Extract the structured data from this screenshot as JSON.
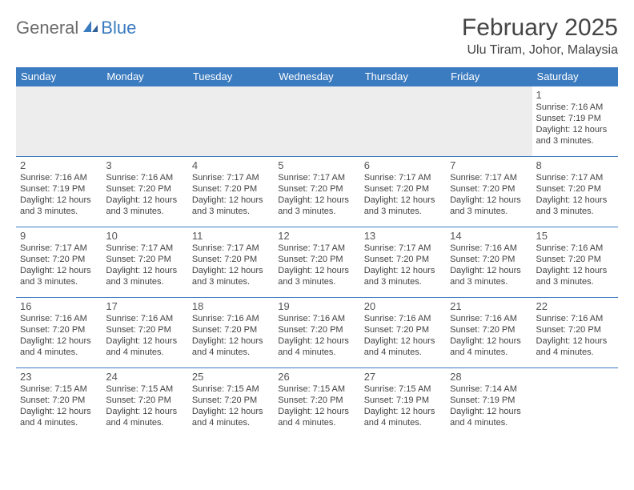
{
  "logo": {
    "text1": "General",
    "text2": "Blue"
  },
  "title": "February 2025",
  "location": "Ulu Tiram, Johor, Malaysia",
  "colors": {
    "header_bg": "#3b7bbf",
    "header_text": "#ffffff",
    "border": "#3b7bbf",
    "empty_bg": "#ededed",
    "body_text": "#424242",
    "logo_gray": "#6b6b6b",
    "logo_blue": "#3b7bbf"
  },
  "dayHeaders": [
    "Sunday",
    "Monday",
    "Tuesday",
    "Wednesday",
    "Thursday",
    "Friday",
    "Saturday"
  ],
  "weeks": [
    [
      null,
      null,
      null,
      null,
      null,
      null,
      {
        "d": 1,
        "sr": "7:16 AM",
        "ss": "7:19 PM",
        "dl": "12 hours and 3 minutes."
      }
    ],
    [
      {
        "d": 2,
        "sr": "7:16 AM",
        "ss": "7:19 PM",
        "dl": "12 hours and 3 minutes."
      },
      {
        "d": 3,
        "sr": "7:16 AM",
        "ss": "7:20 PM",
        "dl": "12 hours and 3 minutes."
      },
      {
        "d": 4,
        "sr": "7:17 AM",
        "ss": "7:20 PM",
        "dl": "12 hours and 3 minutes."
      },
      {
        "d": 5,
        "sr": "7:17 AM",
        "ss": "7:20 PM",
        "dl": "12 hours and 3 minutes."
      },
      {
        "d": 6,
        "sr": "7:17 AM",
        "ss": "7:20 PM",
        "dl": "12 hours and 3 minutes."
      },
      {
        "d": 7,
        "sr": "7:17 AM",
        "ss": "7:20 PM",
        "dl": "12 hours and 3 minutes."
      },
      {
        "d": 8,
        "sr": "7:17 AM",
        "ss": "7:20 PM",
        "dl": "12 hours and 3 minutes."
      }
    ],
    [
      {
        "d": 9,
        "sr": "7:17 AM",
        "ss": "7:20 PM",
        "dl": "12 hours and 3 minutes."
      },
      {
        "d": 10,
        "sr": "7:17 AM",
        "ss": "7:20 PM",
        "dl": "12 hours and 3 minutes."
      },
      {
        "d": 11,
        "sr": "7:17 AM",
        "ss": "7:20 PM",
        "dl": "12 hours and 3 minutes."
      },
      {
        "d": 12,
        "sr": "7:17 AM",
        "ss": "7:20 PM",
        "dl": "12 hours and 3 minutes."
      },
      {
        "d": 13,
        "sr": "7:17 AM",
        "ss": "7:20 PM",
        "dl": "12 hours and 3 minutes."
      },
      {
        "d": 14,
        "sr": "7:16 AM",
        "ss": "7:20 PM",
        "dl": "12 hours and 3 minutes."
      },
      {
        "d": 15,
        "sr": "7:16 AM",
        "ss": "7:20 PM",
        "dl": "12 hours and 3 minutes."
      }
    ],
    [
      {
        "d": 16,
        "sr": "7:16 AM",
        "ss": "7:20 PM",
        "dl": "12 hours and 4 minutes."
      },
      {
        "d": 17,
        "sr": "7:16 AM",
        "ss": "7:20 PM",
        "dl": "12 hours and 4 minutes."
      },
      {
        "d": 18,
        "sr": "7:16 AM",
        "ss": "7:20 PM",
        "dl": "12 hours and 4 minutes."
      },
      {
        "d": 19,
        "sr": "7:16 AM",
        "ss": "7:20 PM",
        "dl": "12 hours and 4 minutes."
      },
      {
        "d": 20,
        "sr": "7:16 AM",
        "ss": "7:20 PM",
        "dl": "12 hours and 4 minutes."
      },
      {
        "d": 21,
        "sr": "7:16 AM",
        "ss": "7:20 PM",
        "dl": "12 hours and 4 minutes."
      },
      {
        "d": 22,
        "sr": "7:16 AM",
        "ss": "7:20 PM",
        "dl": "12 hours and 4 minutes."
      }
    ],
    [
      {
        "d": 23,
        "sr": "7:15 AM",
        "ss": "7:20 PM",
        "dl": "12 hours and 4 minutes."
      },
      {
        "d": 24,
        "sr": "7:15 AM",
        "ss": "7:20 PM",
        "dl": "12 hours and 4 minutes."
      },
      {
        "d": 25,
        "sr": "7:15 AM",
        "ss": "7:20 PM",
        "dl": "12 hours and 4 minutes."
      },
      {
        "d": 26,
        "sr": "7:15 AM",
        "ss": "7:20 PM",
        "dl": "12 hours and 4 minutes."
      },
      {
        "d": 27,
        "sr": "7:15 AM",
        "ss": "7:19 PM",
        "dl": "12 hours and 4 minutes."
      },
      {
        "d": 28,
        "sr": "7:14 AM",
        "ss": "7:19 PM",
        "dl": "12 hours and 4 minutes."
      },
      null
    ]
  ],
  "labels": {
    "sunrise": "Sunrise:",
    "sunset": "Sunset:",
    "daylight": "Daylight:"
  }
}
